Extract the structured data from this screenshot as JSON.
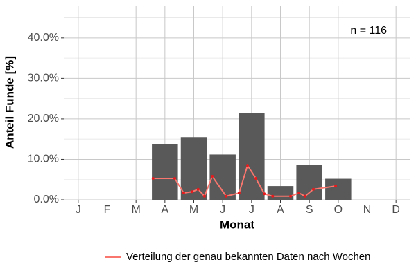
{
  "chart_data": {
    "type": "bar",
    "x_label": "Monat",
    "y_label": "Anteil Funde [%]",
    "annotation": "n = 116",
    "categories": [
      "J",
      "F",
      "M",
      "A",
      "M",
      "J",
      "J",
      "A",
      "S",
      "O",
      "N",
      "D"
    ],
    "values": [
      0,
      0,
      0,
      13.8,
      15.5,
      11.2,
      21.5,
      3.4,
      8.6,
      5.2,
      0,
      0
    ],
    "color": "#595959",
    "line": {
      "type": "line",
      "name": "Verteilung der genau bekannten Daten nach Wochen",
      "color": "#f8766d",
      "point_color": "#e41a1c",
      "x": [
        3.59,
        4.34,
        4.65,
        4.94,
        5.15,
        5.37,
        5.64,
        6.12,
        6.57,
        6.86,
        7.15,
        7.44,
        7.73,
        8.35,
        8.64,
        8.85,
        9.14,
        9.91
      ],
      "values": [
        5.3,
        5.3,
        1.7,
        2.0,
        2.6,
        0.9,
        5.8,
        0.9,
        1.7,
        8.5,
        5.3,
        1.5,
        0.9,
        0.9,
        1.7,
        0.9,
        2.6,
        3.4
      ]
    },
    "ylim": [
      0,
      48
    ],
    "yticks": [
      {
        "value": 0,
        "label": "0.0%"
      },
      {
        "value": 10,
        "label": "10.0%"
      },
      {
        "value": 20,
        "label": "20.0%"
      },
      {
        "value": 30,
        "label": "30.0%"
      },
      {
        "value": 40,
        "label": "40.0%"
      }
    ],
    "yminor": [
      5,
      15,
      25,
      35,
      45
    ],
    "grid": true
  }
}
